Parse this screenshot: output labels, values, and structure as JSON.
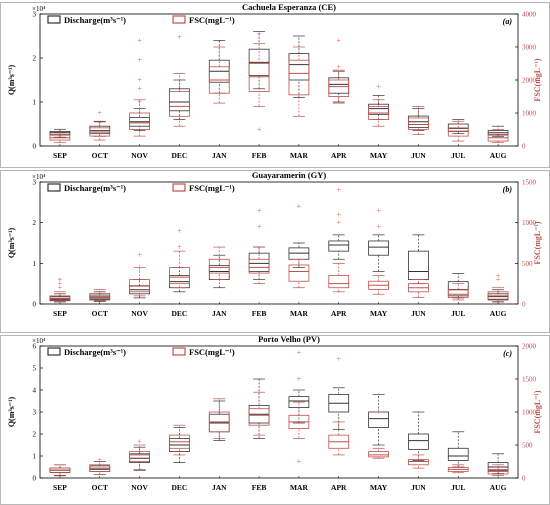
{
  "colors": {
    "discharge": "#333333",
    "fsc": "#c0504d",
    "outlier": "#e06060",
    "frame": "#000000"
  },
  "months": [
    "SEP",
    "OCT",
    "NOV",
    "DEC",
    "JAN",
    "FEB",
    "MAR",
    "APR",
    "MAY",
    "JUN",
    "JUL",
    "AUG"
  ],
  "legend": {
    "discharge": "Discharge(m³s⁻¹)",
    "fsc": "FSC(mgL⁻¹)"
  },
  "chart_data": [
    {
      "type": "box",
      "title": "Cachuela Esperanza (CE)",
      "panel_label": "(a)",
      "ylabel_left": "Q(m³s⁻¹)",
      "ylabel_right": "FSC(mgL⁻¹)",
      "left_multiplier": "×10⁴",
      "ylim_left": [
        0,
        3
      ],
      "ylim_right": [
        0,
        4000
      ],
      "left_ticks": [
        0,
        1,
        2,
        3
      ],
      "right_ticks": [
        0,
        1000,
        2000,
        3000,
        4000
      ],
      "series": [
        {
          "name": "Discharge",
          "axis": "left",
          "boxes": [
            [
              0.2,
              0.25,
              0.3,
              0.33,
              0.38
            ],
            [
              0.22,
              0.28,
              0.35,
              0.45,
              0.55
            ],
            [
              0.35,
              0.45,
              0.55,
              0.65,
              0.85
            ],
            [
              0.6,
              0.8,
              1.0,
              1.3,
              1.5
            ],
            [
              1.2,
              1.45,
              1.7,
              1.95,
              2.4
            ],
            [
              1.3,
              1.6,
              1.9,
              2.2,
              2.6
            ],
            [
              1.1,
              1.5,
              1.85,
              2.1,
              2.5
            ],
            [
              1.0,
              1.2,
              1.4,
              1.55,
              1.7
            ],
            [
              0.6,
              0.72,
              0.85,
              0.95,
              1.15
            ],
            [
              0.35,
              0.42,
              0.55,
              0.68,
              0.85
            ],
            [
              0.28,
              0.33,
              0.4,
              0.5,
              0.6
            ],
            [
              0.22,
              0.25,
              0.3,
              0.35,
              0.45
            ]
          ],
          "outliers": [
            [],
            [],
            [
              1.3,
              1.0
            ],
            [],
            [],
            [],
            [],
            [],
            [],
            [],
            [],
            []
          ]
        },
        {
          "name": "FSC",
          "axis": "right",
          "boxes": [
            [
              100,
              180,
              250,
              350,
              420
            ],
            [
              180,
              300,
              420,
              550,
              750
            ],
            [
              300,
              500,
              700,
              1000,
              1400
            ],
            [
              600,
              900,
              1200,
              1650,
              2200
            ],
            [
              1300,
              1600,
              2000,
              2400,
              3000
            ],
            [
              1200,
              1650,
              2100,
              2500,
              3100
            ],
            [
              900,
              1550,
              2200,
              2600,
              3000
            ],
            [
              1300,
              1500,
              1800,
              2000,
              2300
            ],
            [
              600,
              800,
              1000,
              1200,
              1400
            ],
            [
              350,
              500,
              650,
              850,
              1200
            ],
            [
              150,
              300,
              450,
              550,
              750
            ],
            [
              100,
              150,
              250,
              350,
              500
            ]
          ],
          "outliers": [
            [],
            [
              1000,
              700
            ],
            [
              3200,
              2600,
              2000
            ],
            [
              3300
            ],
            [],
            [
              3400,
              500
            ],
            [],
            [
              3200,
              2400
            ],
            [
              1800
            ],
            [],
            [],
            []
          ]
        }
      ]
    },
    {
      "type": "box",
      "title": "Guayaramerin (GY)",
      "panel_label": "(b)",
      "ylabel_left": "Q(m³s⁻¹)",
      "ylabel_right": "FSC(mgL⁻¹)",
      "left_multiplier": "×10⁴",
      "ylim_left": [
        0,
        3
      ],
      "ylim_right": [
        0,
        1500
      ],
      "left_ticks": [
        0,
        1,
        2,
        3
      ],
      "right_ticks": [
        0,
        500,
        1000,
        1500
      ],
      "series": [
        {
          "name": "Discharge",
          "axis": "left",
          "boxes": [
            [
              0.05,
              0.08,
              0.12,
              0.18,
              0.25
            ],
            [
              0.06,
              0.1,
              0.15,
              0.22,
              0.3
            ],
            [
              0.15,
              0.25,
              0.35,
              0.45,
              0.6
            ],
            [
              0.3,
              0.4,
              0.55,
              0.7,
              0.9
            ],
            [
              0.4,
              0.6,
              0.8,
              0.95,
              1.2
            ],
            [
              0.6,
              0.8,
              1.0,
              1.25,
              1.4
            ],
            [
              0.9,
              1.1,
              1.25,
              1.38,
              1.5
            ],
            [
              1.1,
              1.3,
              1.45,
              1.55,
              1.7
            ],
            [
              0.8,
              1.2,
              1.4,
              1.55,
              1.7
            ],
            [
              0.5,
              0.6,
              0.8,
              1.3,
              1.7
            ],
            [
              0.15,
              0.2,
              0.35,
              0.55,
              0.75
            ],
            [
              0.05,
              0.1,
              0.18,
              0.25,
              0.35
            ]
          ],
          "outliers": [
            [
              0.6,
              0.4
            ],
            [],
            [],
            [],
            [],
            [],
            [],
            [],
            [],
            [],
            [],
            []
          ]
        },
        {
          "name": "FSC",
          "axis": "right",
          "boxes": [
            [
              30,
              50,
              70,
              100,
              150
            ],
            [
              40,
              60,
              90,
              130,
              180
            ],
            [
              100,
              150,
              220,
              300,
              450
            ],
            [
              200,
              250,
              330,
              450,
              650
            ],
            [
              300,
              380,
              450,
              550,
              700
            ],
            [
              250,
              380,
              450,
              550,
              700
            ],
            [
              200,
              280,
              400,
              480,
              550
            ],
            [
              150,
              200,
              250,
              350,
              500
            ],
            [
              120,
              180,
              230,
              280,
              350
            ],
            [
              80,
              150,
              200,
              250,
              300
            ],
            [
              50,
              80,
              120,
              180,
              250
            ],
            [
              30,
              60,
              100,
              150,
              200
            ]
          ],
          "outliers": [
            [
              300,
              250
            ],
            [],
            [
              600,
              450
            ],
            [
              900,
              700
            ],
            [],
            [
              1150,
              950
            ],
            [
              1200
            ],
            [
              1400,
              1100,
              1000
            ],
            [
              1150,
              950
            ],
            [],
            [],
            [
              350,
              300
            ]
          ]
        }
      ]
    },
    {
      "type": "box",
      "title": "Porto Velho (PV)",
      "panel_label": "(c)",
      "ylabel_left": "Q(m³s⁻¹)",
      "ylabel_right": "FSC(mgL⁻¹)",
      "left_multiplier": "×10⁴",
      "ylim_left": [
        0,
        6
      ],
      "ylim_right": [
        0,
        2000
      ],
      "left_ticks": [
        0,
        1,
        2,
        3,
        4,
        5,
        6
      ],
      "right_ticks": [
        0,
        500,
        1000,
        1500,
        2000
      ],
      "series": [
        {
          "name": "Discharge",
          "axis": "left",
          "boxes": [
            [
              0.1,
              0.25,
              0.35,
              0.45,
              0.6
            ],
            [
              0.15,
              0.3,
              0.4,
              0.55,
              0.75
            ],
            [
              0.35,
              0.7,
              0.9,
              1.1,
              1.4
            ],
            [
              0.7,
              1.2,
              1.5,
              1.8,
              2.3
            ],
            [
              1.7,
              2.1,
              2.5,
              2.9,
              3.5
            ],
            [
              1.8,
              2.5,
              2.9,
              3.3,
              4.5
            ],
            [
              2.5,
              3.2,
              3.5,
              3.7,
              4.0
            ],
            [
              2.2,
              3.0,
              3.4,
              3.8,
              4.1
            ],
            [
              1.5,
              2.3,
              2.7,
              3.0,
              3.8
            ],
            [
              0.8,
              1.3,
              1.7,
              2.0,
              3.0
            ],
            [
              0.5,
              0.8,
              1.0,
              1.35,
              2.1
            ],
            [
              0.2,
              0.35,
              0.5,
              0.7,
              1.1
            ]
          ],
          "outliers": [
            [],
            [],
            [],
            [],
            [],
            [],
            [],
            [],
            [],
            [],
            [],
            []
          ]
        },
        {
          "name": "FSC",
          "axis": "right",
          "boxes": [
            [
              40,
              80,
              120,
              150,
              200
            ],
            [
              50,
              100,
              150,
              200,
              250
            ],
            [
              130,
              250,
              350,
              400,
              500
            ],
            [
              350,
              450,
              550,
              650,
              800
            ],
            [
              600,
              700,
              850,
              1000,
              1200
            ],
            [
              650,
              800,
              950,
              1050,
              1300
            ],
            [
              600,
              750,
              850,
              950,
              1150
            ],
            [
              350,
              450,
              550,
              650,
              850
            ],
            [
              300,
              320,
              350,
              400,
              450
            ],
            [
              150,
              200,
              250,
              280,
              350
            ],
            [
              80,
              100,
              130,
              160,
              200
            ],
            [
              40,
              60,
              100,
              130,
              200
            ]
          ],
          "outliers": [
            [],
            [
              270
            ],
            [
              550
            ],
            [],
            [],
            [],
            [
              1900,
              1500,
              250
            ],
            [
              1800
            ],
            [
              1000
            ],
            [],
            [],
            []
          ]
        }
      ]
    }
  ]
}
